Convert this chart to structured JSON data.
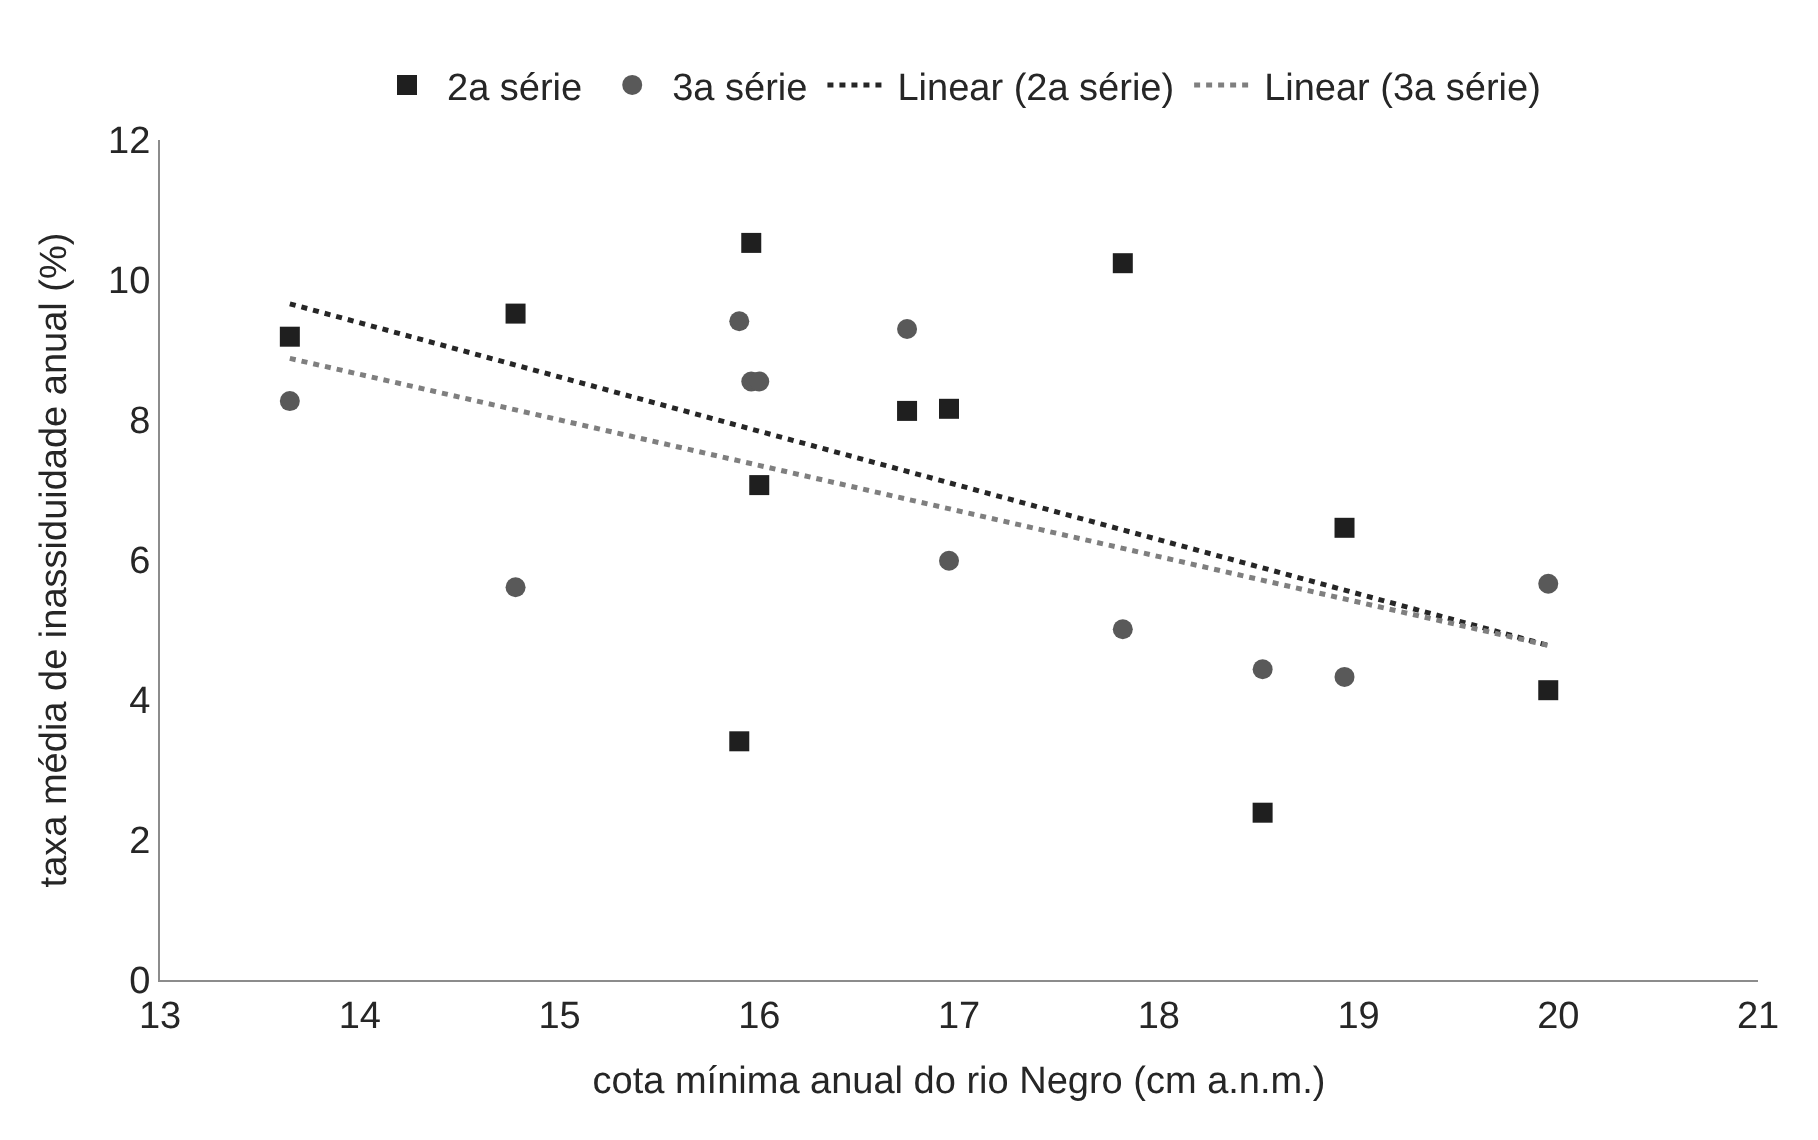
{
  "chart_data": {
    "type": "scatter",
    "xlabel": "cota mínima anual do rio Negro (cm a.n.m.)",
    "ylabel": "taxa média de inassiduidade anual (%)",
    "xlim": [
      13,
      21
    ],
    "xticks": [
      13,
      14,
      15,
      16,
      17,
      18,
      19,
      20,
      21
    ],
    "ylim": [
      0,
      12
    ],
    "yticks": [
      0,
      2,
      4,
      6,
      8,
      10,
      12
    ],
    "grid": false,
    "legend": "top",
    "series": [
      {
        "name": "2a série",
        "marker": "square",
        "color": "#1f1f1f",
        "x": [
          13.65,
          14.78,
          15.96,
          16.0,
          15.9,
          16.74,
          16.95,
          17.82,
          18.52,
          18.93,
          19.95
        ],
        "values": [
          9.19,
          9.52,
          10.53,
          7.07,
          3.41,
          8.13,
          8.16,
          10.24,
          2.39,
          6.46,
          4.14
        ]
      },
      {
        "name": "3a série",
        "marker": "circle",
        "color": "#595959",
        "x": [
          13.65,
          14.78,
          15.9,
          15.96,
          16.0,
          16.74,
          16.95,
          17.82,
          18.52,
          18.93,
          19.95
        ],
        "values": [
          8.27,
          5.61,
          9.41,
          8.55,
          8.55,
          9.3,
          5.99,
          5.01,
          4.44,
          4.33,
          5.66
        ]
      },
      {
        "name": "Linear (2a série)",
        "type": "line",
        "line_style": "dotted",
        "color": "#262626",
        "x": [
          13.65,
          19.95
        ],
        "values": [
          9.66,
          4.78
        ]
      },
      {
        "name": "Linear (3a série)",
        "type": "line",
        "line_style": "dotted",
        "color": "#7f7f7f",
        "x": [
          13.65,
          19.95
        ],
        "values": [
          8.88,
          4.78
        ]
      }
    ]
  }
}
